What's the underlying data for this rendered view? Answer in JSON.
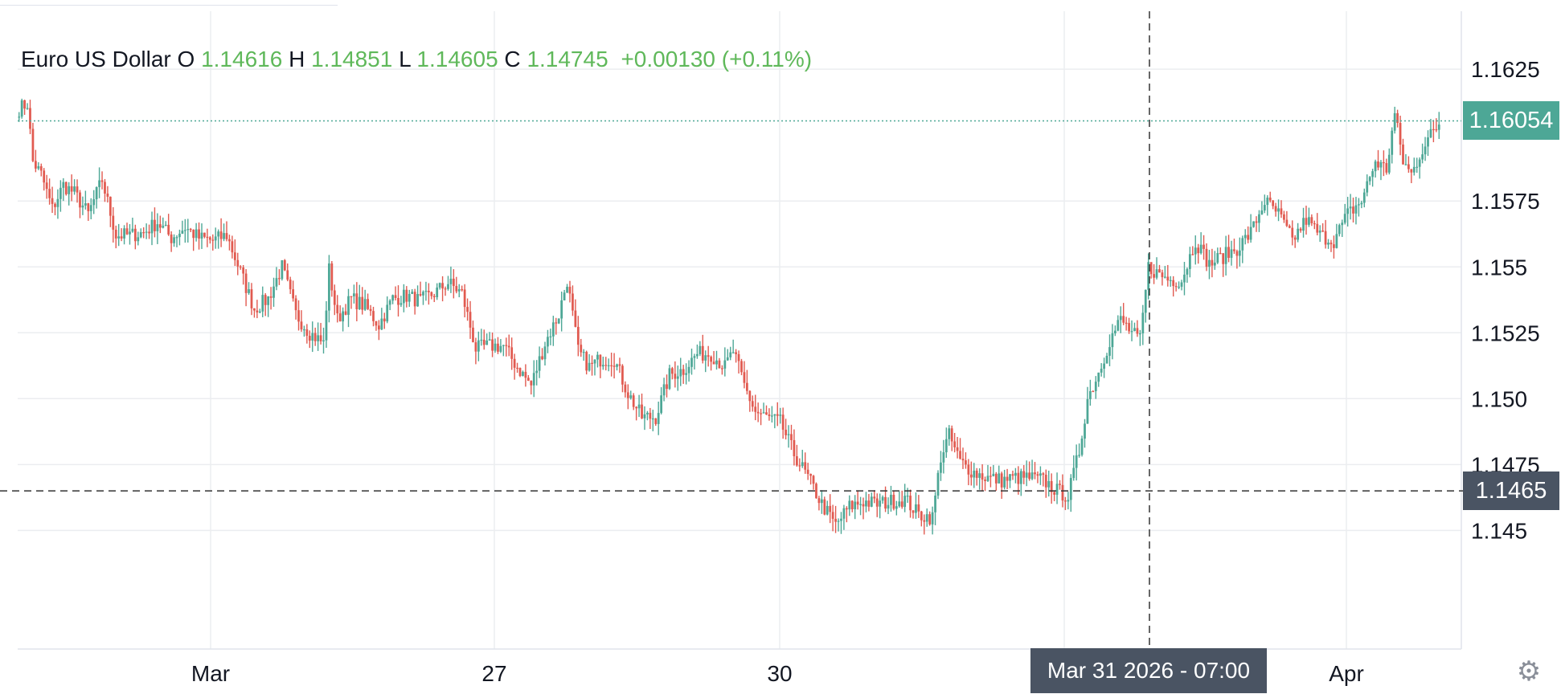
{
  "legend": {
    "symbol": "Euro US Dollar",
    "o_label": "O",
    "o_value": "1.14616",
    "h_label": "H",
    "h_value": "1.14851",
    "l_label": "L",
    "l_value": "1.14605",
    "c_label": "C",
    "c_value": "1.14745",
    "change": "+0.00130 (+0.11%)"
  },
  "last_price_label": "1.16054",
  "crosshair_price_label": "1.1465",
  "crosshair_time_label": "Mar 31 2026 - 07:00",
  "colors": {
    "up": "#4da796",
    "down": "#e15a50",
    "legend_value": "#5fb85a",
    "last_price": "#4da796",
    "crosshair_tag": "#4a5463",
    "grid": "#ebedf0"
  },
  "settings_icon": "gear-icon",
  "chart_data": {
    "type": "candlestick",
    "y_ticks": [
      "1.1625",
      "1.1575",
      "1.155",
      "1.1525",
      "1.150",
      "1.1475",
      "1.145"
    ],
    "y_tick_values": [
      1.1625,
      1.1575,
      1.155,
      1.1525,
      1.15,
      1.1475,
      1.145
    ],
    "x_ticks": [
      "Mar",
      "27",
      "30",
      "Apr"
    ],
    "ylim": [
      1.1405,
      1.1647
    ],
    "last_price": 1.16054,
    "crosshair_price": 1.1465,
    "grid": true,
    "path": [
      [
        0,
        1.161
      ],
      [
        3,
        1.1612
      ],
      [
        5,
        1.159
      ],
      [
        8,
        1.1585
      ],
      [
        12,
        1.1572
      ],
      [
        16,
        1.1581
      ],
      [
        20,
        1.1578
      ],
      [
        25,
        1.157
      ],
      [
        30,
        1.1583
      ],
      [
        35,
        1.1562
      ],
      [
        40,
        1.1562
      ],
      [
        45,
        1.1563
      ],
      [
        50,
        1.1567
      ],
      [
        55,
        1.1561
      ],
      [
        60,
        1.1565
      ],
      [
        65,
        1.1561
      ],
      [
        70,
        1.156
      ],
      [
        75,
        1.1562
      ],
      [
        80,
        1.1548
      ],
      [
        85,
        1.1534
      ],
      [
        90,
        1.1538
      ],
      [
        95,
        1.155
      ],
      [
        100,
        1.1532
      ],
      [
        105,
        1.1525
      ],
      [
        110,
        1.1521
      ],
      [
        112,
        1.1549
      ],
      [
        115,
        1.153
      ],
      [
        120,
        1.1538
      ],
      [
        125,
        1.1535
      ],
      [
        130,
        1.1528
      ],
      [
        135,
        1.1538
      ],
      [
        140,
        1.1539
      ],
      [
        145,
        1.1537
      ],
      [
        150,
        1.154
      ],
      [
        155,
        1.1544
      ],
      [
        160,
        1.154
      ],
      [
        165,
        1.1519
      ],
      [
        170,
        1.152
      ],
      [
        175,
        1.152
      ],
      [
        180,
        1.1512
      ],
      [
        185,
        1.1505
      ],
      [
        190,
        1.1521
      ],
      [
        195,
        1.1532
      ],
      [
        198,
        1.1545
      ],
      [
        202,
        1.1518
      ],
      [
        206,
        1.1512
      ],
      [
        210,
        1.1515
      ],
      [
        215,
        1.1515
      ],
      [
        220,
        1.1502
      ],
      [
        225,
        1.1493
      ],
      [
        230,
        1.1493
      ],
      [
        235,
        1.1509
      ],
      [
        240,
        1.1511
      ],
      [
        245,
        1.1517
      ],
      [
        250,
        1.1517
      ],
      [
        255,
        1.1512
      ],
      [
        258,
        1.1518
      ],
      [
        262,
        1.1505
      ],
      [
        266,
        1.1495
      ],
      [
        270,
        1.1493
      ],
      [
        275,
        1.1491
      ],
      [
        280,
        1.1479
      ],
      [
        285,
        1.147
      ],
      [
        290,
        1.146
      ],
      [
        295,
        1.1452
      ],
      [
        300,
        1.1459
      ],
      [
        305,
        1.1461
      ],
      [
        310,
        1.146
      ],
      [
        315,
        1.1461
      ],
      [
        320,
        1.1462
      ],
      [
        325,
        1.1456
      ],
      [
        330,
        1.1455
      ],
      [
        333,
        1.1478
      ],
      [
        336,
        1.1486
      ],
      [
        340,
        1.1476
      ],
      [
        345,
        1.1472
      ],
      [
        350,
        1.147
      ],
      [
        355,
        1.1469
      ],
      [
        360,
        1.147
      ],
      [
        365,
        1.147
      ],
      [
        370,
        1.1469
      ],
      [
        375,
        1.1465
      ],
      [
        379,
        1.1463
      ],
      [
        383,
        1.148
      ],
      [
        386,
        1.15
      ],
      [
        390,
        1.151
      ],
      [
        394,
        1.1522
      ],
      [
        398,
        1.153
      ],
      [
        402,
        1.1525
      ],
      [
        405,
        1.1522
      ],
      [
        408,
        1.155
      ],
      [
        412,
        1.1547
      ],
      [
        416,
        1.1545
      ],
      [
        420,
        1.1545
      ],
      [
        425,
        1.156
      ],
      [
        430,
        1.1551
      ],
      [
        435,
        1.1554
      ],
      [
        440,
        1.1557
      ],
      [
        445,
        1.1563
      ],
      [
        450,
        1.1575
      ],
      [
        455,
        1.157
      ],
      [
        460,
        1.156
      ],
      [
        465,
        1.1568
      ],
      [
        470,
        1.1562
      ],
      [
        475,
        1.156
      ],
      [
        480,
        1.157
      ],
      [
        485,
        1.1575
      ],
      [
        490,
        1.159
      ],
      [
        494,
        1.1587
      ],
      [
        497,
        1.1608
      ],
      [
        500,
        1.159
      ],
      [
        503,
        1.1585
      ],
      [
        507,
        1.1595
      ],
      [
        510,
        1.16
      ],
      [
        513,
        1.1604
      ]
    ]
  }
}
